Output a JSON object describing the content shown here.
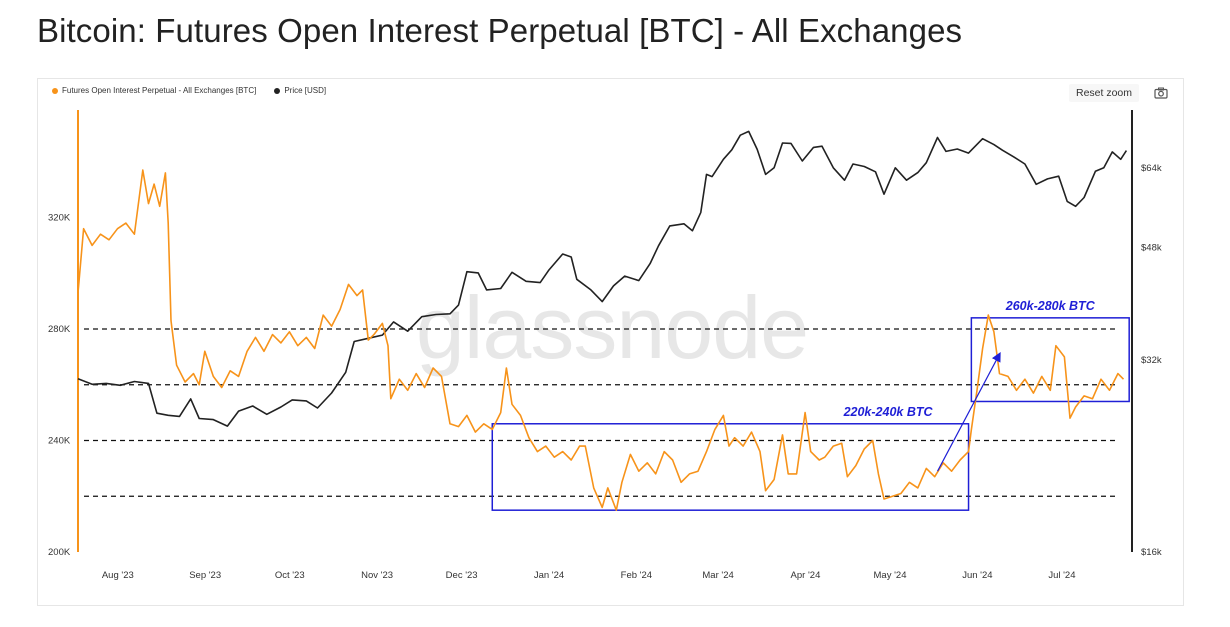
{
  "page": {
    "title": "Bitcoin: Futures Open Interest Perpetual [BTC] - All Exchanges"
  },
  "toolbar": {
    "reset_label": "Reset zoom",
    "camera_icon": "camera-icon"
  },
  "watermark": "glassnode",
  "colors": {
    "oi": "#f7931a",
    "price": "#222222",
    "box": "#1f1fd6",
    "axis": "#222222"
  },
  "chart_data": {
    "type": "line",
    "title": "Bitcoin: Futures Open Interest Perpetual [BTC] - All Exchanges",
    "legend": {
      "placement": "top-left"
    },
    "grid": false,
    "x_ticks": [
      "Aug '23",
      "Sep '23",
      "Oct '23",
      "Nov '23",
      "Dec '23",
      "Jan '24",
      "Feb '24",
      "Mar '24",
      "Apr '24",
      "May '24",
      "Jun '24",
      "Jul '24"
    ],
    "x_range": [
      "2023-07-20",
      "2024-07-28"
    ],
    "y_left": {
      "ticks": [
        "200K",
        "240K",
        "280K",
        "320K"
      ],
      "values": [
        200000,
        240000,
        280000,
        320000
      ],
      "range": [
        200000,
        360000
      ]
    },
    "y_right": {
      "ticks": [
        "$16k",
        "$32k",
        "$48k",
        "$64k"
      ],
      "values": [
        16000,
        32000,
        48000,
        64000
      ],
      "range": [
        16000,
        80000
      ],
      "scale": "log"
    },
    "series": [
      {
        "name": "Futures Open Interest Perpetual - All Exchanges [BTC]",
        "axis": "left",
        "color": "#f7931a",
        "data": [
          [
            "2023-07-20",
            293000
          ],
          [
            "2023-07-22",
            316000
          ],
          [
            "2023-07-25",
            310000
          ],
          [
            "2023-07-28",
            314000
          ],
          [
            "2023-07-31",
            312000
          ],
          [
            "2023-08-03",
            316000
          ],
          [
            "2023-08-06",
            318000
          ],
          [
            "2023-08-09",
            314000
          ],
          [
            "2023-08-12",
            337000
          ],
          [
            "2023-08-14",
            325000
          ],
          [
            "2023-08-16",
            332000
          ],
          [
            "2023-08-18",
            324000
          ],
          [
            "2023-08-20",
            336000
          ],
          [
            "2023-08-21",
            318000
          ],
          [
            "2023-08-22",
            283000
          ],
          [
            "2023-08-24",
            267000
          ],
          [
            "2023-08-27",
            261000
          ],
          [
            "2023-08-30",
            264000
          ],
          [
            "2023-09-01",
            260000
          ],
          [
            "2023-09-03",
            272000
          ],
          [
            "2023-09-06",
            263000
          ],
          [
            "2023-09-09",
            259000
          ],
          [
            "2023-09-12",
            265000
          ],
          [
            "2023-09-15",
            263000
          ],
          [
            "2023-09-18",
            272000
          ],
          [
            "2023-09-21",
            277000
          ],
          [
            "2023-09-24",
            272000
          ],
          [
            "2023-09-27",
            278000
          ],
          [
            "2023-09-30",
            275000
          ],
          [
            "2023-10-03",
            279000
          ],
          [
            "2023-10-06",
            274000
          ],
          [
            "2023-10-09",
            277000
          ],
          [
            "2023-10-12",
            273000
          ],
          [
            "2023-10-15",
            285000
          ],
          [
            "2023-10-18",
            281000
          ],
          [
            "2023-10-21",
            287000
          ],
          [
            "2023-10-24",
            296000
          ],
          [
            "2023-10-27",
            292000
          ],
          [
            "2023-10-29",
            294000
          ],
          [
            "2023-10-31",
            276000
          ],
          [
            "2023-11-02",
            278000
          ],
          [
            "2023-11-05",
            282000
          ],
          [
            "2023-11-07",
            274000
          ],
          [
            "2023-11-08",
            255000
          ],
          [
            "2023-11-11",
            262000
          ],
          [
            "2023-11-14",
            258000
          ],
          [
            "2023-11-17",
            264000
          ],
          [
            "2023-11-20",
            259000
          ],
          [
            "2023-11-23",
            266000
          ],
          [
            "2023-11-26",
            263000
          ],
          [
            "2023-11-29",
            246000
          ],
          [
            "2023-12-02",
            245000
          ],
          [
            "2023-12-05",
            249000
          ],
          [
            "2023-12-08",
            243000
          ],
          [
            "2023-12-11",
            246000
          ],
          [
            "2023-12-14",
            244000
          ],
          [
            "2023-12-17",
            250000
          ],
          [
            "2023-12-19",
            266000
          ],
          [
            "2023-12-21",
            253000
          ],
          [
            "2023-12-24",
            249000
          ],
          [
            "2023-12-27",
            241000
          ],
          [
            "2023-12-30",
            236000
          ],
          [
            "2024-01-02",
            238000
          ],
          [
            "2024-01-05",
            234000
          ],
          [
            "2024-01-08",
            236000
          ],
          [
            "2024-01-11",
            233000
          ],
          [
            "2024-01-14",
            238000
          ],
          [
            "2024-01-16",
            238000
          ],
          [
            "2024-01-19",
            223000
          ],
          [
            "2024-01-22",
            216000
          ],
          [
            "2024-01-24",
            223000
          ],
          [
            "2024-01-27",
            215000
          ],
          [
            "2024-01-29",
            225000
          ],
          [
            "2024-02-01",
            235000
          ],
          [
            "2024-02-04",
            229000
          ],
          [
            "2024-02-07",
            232000
          ],
          [
            "2024-02-10",
            228000
          ],
          [
            "2024-02-13",
            236000
          ],
          [
            "2024-02-16",
            233000
          ],
          [
            "2024-02-19",
            225000
          ],
          [
            "2024-02-22",
            228000
          ],
          [
            "2024-02-25",
            229000
          ],
          [
            "2024-02-28",
            236000
          ],
          [
            "2024-03-02",
            244000
          ],
          [
            "2024-03-05",
            249000
          ],
          [
            "2024-03-07",
            238000
          ],
          [
            "2024-03-09",
            241000
          ],
          [
            "2024-03-12",
            238000
          ],
          [
            "2024-03-15",
            243000
          ],
          [
            "2024-03-18",
            236000
          ],
          [
            "2024-03-20",
            222000
          ],
          [
            "2024-03-23",
            226000
          ],
          [
            "2024-03-26",
            242000
          ],
          [
            "2024-03-28",
            228000
          ],
          [
            "2024-03-31",
            228000
          ],
          [
            "2024-04-03",
            250000
          ],
          [
            "2024-04-05",
            236000
          ],
          [
            "2024-04-08",
            233000
          ],
          [
            "2024-04-10",
            234000
          ],
          [
            "2024-04-13",
            238000
          ],
          [
            "2024-04-16",
            239000
          ],
          [
            "2024-04-18",
            227000
          ],
          [
            "2024-04-21",
            231000
          ],
          [
            "2024-04-24",
            237000
          ],
          [
            "2024-04-27",
            240000
          ],
          [
            "2024-04-29",
            228000
          ],
          [
            "2024-05-01",
            219000
          ],
          [
            "2024-05-04",
            220000
          ],
          [
            "2024-05-07",
            221000
          ],
          [
            "2024-05-10",
            225000
          ],
          [
            "2024-05-13",
            223000
          ],
          [
            "2024-05-16",
            230000
          ],
          [
            "2024-05-19",
            227000
          ],
          [
            "2024-05-22",
            232000
          ],
          [
            "2024-05-25",
            229000
          ],
          [
            "2024-05-28",
            233000
          ],
          [
            "2024-05-31",
            236000
          ],
          [
            "2024-06-01",
            244000
          ],
          [
            "2024-06-03",
            258000
          ],
          [
            "2024-06-05",
            273000
          ],
          [
            "2024-06-07",
            285000
          ],
          [
            "2024-06-09",
            279000
          ],
          [
            "2024-06-11",
            264000
          ],
          [
            "2024-06-14",
            263000
          ],
          [
            "2024-06-17",
            258000
          ],
          [
            "2024-06-20",
            262000
          ],
          [
            "2024-06-23",
            257000
          ],
          [
            "2024-06-26",
            263000
          ],
          [
            "2024-06-29",
            258000
          ],
          [
            "2024-07-01",
            274000
          ],
          [
            "2024-07-04",
            270000
          ],
          [
            "2024-07-06",
            248000
          ],
          [
            "2024-07-08",
            252000
          ],
          [
            "2024-07-11",
            256000
          ],
          [
            "2024-07-14",
            255000
          ],
          [
            "2024-07-17",
            262000
          ],
          [
            "2024-07-20",
            258000
          ],
          [
            "2024-07-23",
            264000
          ],
          [
            "2024-07-25",
            262000
          ]
        ]
      },
      {
        "name": "Price [USD]",
        "axis": "right",
        "color": "#222222",
        "data": [
          [
            "2023-07-20",
            29900
          ],
          [
            "2023-07-25",
            29300
          ],
          [
            "2023-07-30",
            29400
          ],
          [
            "2023-08-04",
            29200
          ],
          [
            "2023-08-09",
            29600
          ],
          [
            "2023-08-14",
            29400
          ],
          [
            "2023-08-17",
            26400
          ],
          [
            "2023-08-21",
            26200
          ],
          [
            "2023-08-25",
            26100
          ],
          [
            "2023-08-29",
            27800
          ],
          [
            "2023-09-01",
            25900
          ],
          [
            "2023-09-06",
            25800
          ],
          [
            "2023-09-11",
            25200
          ],
          [
            "2023-09-15",
            26600
          ],
          [
            "2023-09-20",
            27100
          ],
          [
            "2023-09-25",
            26300
          ],
          [
            "2023-09-30",
            27000
          ],
          [
            "2023-10-04",
            27700
          ],
          [
            "2023-10-09",
            27600
          ],
          [
            "2023-10-13",
            26900
          ],
          [
            "2023-10-18",
            28400
          ],
          [
            "2023-10-23",
            30600
          ],
          [
            "2023-10-26",
            34200
          ],
          [
            "2023-10-31",
            34600
          ],
          [
            "2023-11-05",
            35000
          ],
          [
            "2023-11-09",
            36700
          ],
          [
            "2023-11-14",
            35500
          ],
          [
            "2023-11-19",
            37400
          ],
          [
            "2023-11-24",
            37700
          ],
          [
            "2023-11-29",
            37800
          ],
          [
            "2023-12-02",
            39000
          ],
          [
            "2023-12-05",
            44000
          ],
          [
            "2023-12-09",
            43800
          ],
          [
            "2023-12-12",
            41200
          ],
          [
            "2023-12-17",
            41400
          ],
          [
            "2023-12-21",
            43900
          ],
          [
            "2023-12-26",
            42500
          ],
          [
            "2023-12-31",
            42300
          ],
          [
            "2024-01-03",
            44200
          ],
          [
            "2024-01-08",
            46900
          ],
          [
            "2024-01-11",
            46400
          ],
          [
            "2024-01-13",
            42800
          ],
          [
            "2024-01-18",
            41200
          ],
          [
            "2024-01-22",
            39500
          ],
          [
            "2024-01-26",
            41800
          ],
          [
            "2024-01-30",
            43300
          ],
          [
            "2024-02-04",
            42600
          ],
          [
            "2024-02-08",
            45300
          ],
          [
            "2024-02-11",
            48300
          ],
          [
            "2024-02-15",
            51900
          ],
          [
            "2024-02-20",
            52300
          ],
          [
            "2024-02-23",
            51000
          ],
          [
            "2024-02-26",
            54500
          ],
          [
            "2024-02-28",
            62500
          ],
          [
            "2024-03-01",
            62000
          ],
          [
            "2024-03-05",
            66000
          ],
          [
            "2024-03-08",
            68300
          ],
          [
            "2024-03-11",
            72000
          ],
          [
            "2024-03-14",
            73000
          ],
          [
            "2024-03-17",
            68400
          ],
          [
            "2024-03-20",
            62500
          ],
          [
            "2024-03-23",
            64000
          ],
          [
            "2024-03-26",
            70000
          ],
          [
            "2024-03-29",
            69900
          ],
          [
            "2024-04-02",
            65600
          ],
          [
            "2024-04-06",
            68900
          ],
          [
            "2024-04-09",
            69200
          ],
          [
            "2024-04-13",
            64000
          ],
          [
            "2024-04-17",
            61200
          ],
          [
            "2024-04-20",
            64900
          ],
          [
            "2024-04-24",
            64300
          ],
          [
            "2024-04-28",
            63100
          ],
          [
            "2024-05-01",
            58200
          ],
          [
            "2024-05-05",
            64000
          ],
          [
            "2024-05-09",
            61200
          ],
          [
            "2024-05-13",
            62900
          ],
          [
            "2024-05-16",
            65200
          ],
          [
            "2024-05-20",
            71400
          ],
          [
            "2024-05-23",
            67900
          ],
          [
            "2024-05-27",
            68500
          ],
          [
            "2024-05-31",
            67500
          ],
          [
            "2024-06-05",
            71100
          ],
          [
            "2024-06-09",
            69600
          ],
          [
            "2024-06-12",
            68200
          ],
          [
            "2024-06-16",
            66600
          ],
          [
            "2024-06-20",
            64900
          ],
          [
            "2024-06-24",
            60300
          ],
          [
            "2024-06-28",
            61500
          ],
          [
            "2024-07-02",
            62100
          ],
          [
            "2024-07-05",
            56700
          ],
          [
            "2024-07-08",
            55700
          ],
          [
            "2024-07-11",
            57500
          ],
          [
            "2024-07-15",
            63200
          ],
          [
            "2024-07-18",
            64000
          ],
          [
            "2024-07-21",
            67800
          ],
          [
            "2024-07-24",
            66000
          ],
          [
            "2024-07-26",
            68100
          ]
        ]
      }
    ],
    "reference_lines": [
      {
        "axis": "left",
        "value": 220000
      },
      {
        "axis": "left",
        "value": 240000
      },
      {
        "axis": "left",
        "value": 260000
      },
      {
        "axis": "left",
        "value": 280000
      }
    ],
    "annotations": [
      {
        "label": "220k-240k BTC",
        "box": {
          "x": [
            "2023-12-14",
            "2024-05-31"
          ],
          "y": [
            215000,
            246000
          ]
        }
      },
      {
        "label": "260k-280k BTC",
        "box": {
          "x": [
            "2024-06-01",
            "2024-07-27"
          ],
          "y": [
            254000,
            284000
          ]
        }
      }
    ]
  }
}
